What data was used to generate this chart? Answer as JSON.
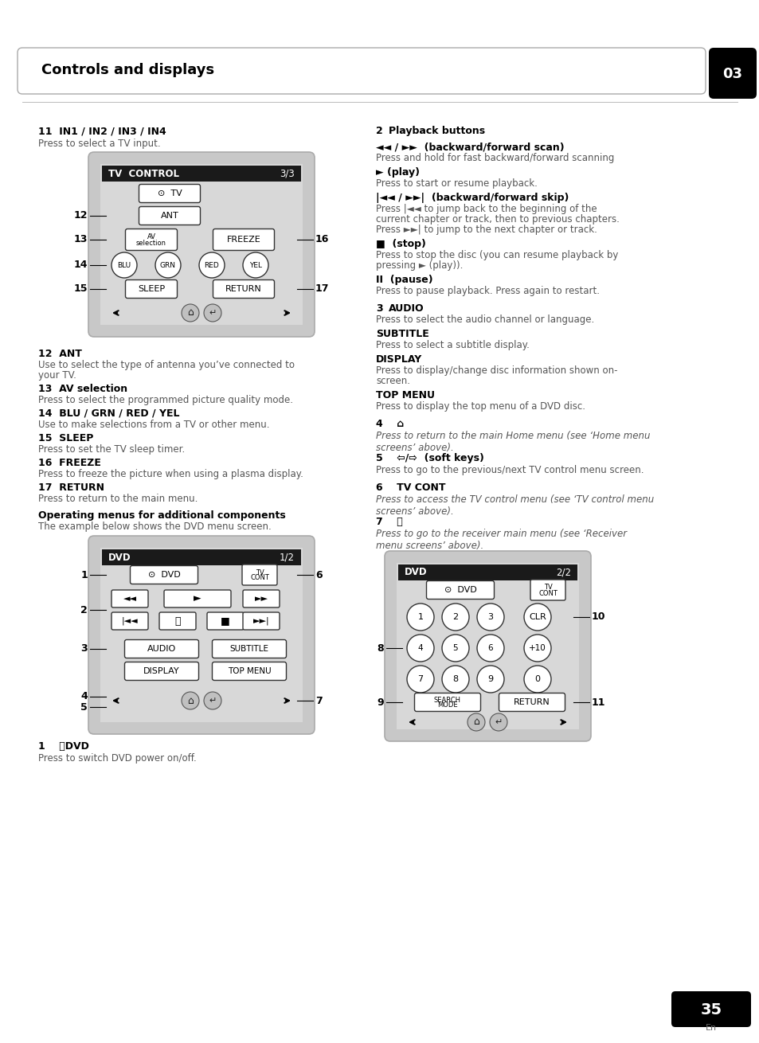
{
  "page_bg": "#ffffff",
  "header_title": "Controls and displays",
  "header_number": "03",
  "page_number": "35",
  "page_lang": "En",
  "remote_bg": "#e0e0e0",
  "remote_inner_bg": "#d0d0d0",
  "header_bar_color": "#222222"
}
